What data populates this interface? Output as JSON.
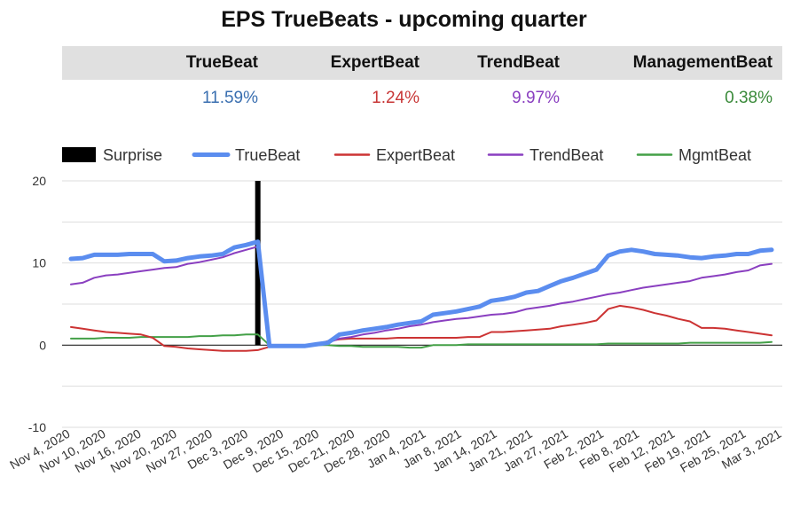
{
  "title": "EPS TrueBeats - upcoming quarter",
  "summary": {
    "headers": [
      "TrueBeat",
      "ExpertBeat",
      "TrendBeat",
      "ManagementBeat"
    ],
    "values": [
      "11.59%",
      "1.24%",
      "9.97%",
      "0.38%"
    ],
    "colors": [
      "#3a6fb0",
      "#c83737",
      "#8a3fc0",
      "#3a8a3a"
    ]
  },
  "chart_data": {
    "type": "line",
    "title": "",
    "xlabel": "",
    "ylabel": "",
    "ylim": [
      -10,
      20
    ],
    "y_ticks": [
      -10,
      0,
      10,
      20
    ],
    "grid": true,
    "legend_position": "top",
    "x_tick_labels": [
      "Nov 4, 2020",
      "Nov 10, 2020",
      "Nov 16, 2020",
      "Nov 20, 2020",
      "Nov 27, 2020",
      "Dec 3, 2020",
      "Dec 9, 2020",
      "Dec 15, 2020",
      "Dec 21, 2020",
      "Dec 28, 2020",
      "Jan 4, 2021",
      "Jan 8, 2021",
      "Jan 14, 2021",
      "Jan 21, 2021",
      "Jan 27, 2021",
      "Feb 2, 2021",
      "Feb 8, 2021",
      "Feb 12, 2021",
      "Feb 19, 2021",
      "Feb 25, 2021",
      "Mar 3, 2021"
    ],
    "x": [
      "2020-11-04",
      "2020-11-06",
      "2020-11-08",
      "2020-11-10",
      "2020-11-12",
      "2020-11-14",
      "2020-11-16",
      "2020-11-18",
      "2020-11-20",
      "2020-11-22",
      "2020-11-24",
      "2020-11-26",
      "2020-11-28",
      "2020-11-30",
      "2020-12-02",
      "2020-12-04",
      "2020-12-06",
      "2020-12-08",
      "2020-12-10",
      "2020-12-12",
      "2020-12-14",
      "2020-12-16",
      "2020-12-18",
      "2020-12-20",
      "2020-12-22",
      "2020-12-24",
      "2020-12-26",
      "2020-12-28",
      "2020-12-30",
      "2021-01-01",
      "2021-01-03",
      "2021-01-05",
      "2021-01-07",
      "2021-01-09",
      "2021-01-11",
      "2021-01-13",
      "2021-01-15",
      "2021-01-17",
      "2021-01-19",
      "2021-01-21",
      "2021-01-23",
      "2021-01-25",
      "2021-01-27",
      "2021-01-29",
      "2021-01-31",
      "2021-02-02",
      "2021-02-04",
      "2021-02-06",
      "2021-02-08",
      "2021-02-10",
      "2021-02-12",
      "2021-02-14",
      "2021-02-16",
      "2021-02-18",
      "2021-02-20",
      "2021-02-22",
      "2021-02-24",
      "2021-02-26",
      "2021-02-28",
      "2021-03-02",
      "2021-03-04"
    ],
    "surprise": {
      "name": "Surprise",
      "x": "2020-12-06",
      "value": 20,
      "color": "#000000"
    },
    "series": [
      {
        "name": "TrueBeat",
        "color": "#5b8def",
        "values": [
          10.5,
          10.6,
          11.0,
          11.0,
          11.0,
          11.1,
          11.1,
          11.1,
          10.2,
          10.3,
          10.6,
          10.8,
          10.9,
          11.1,
          11.9,
          12.2,
          12.6,
          -0.1,
          -0.1,
          -0.1,
          -0.1,
          0.1,
          0.3,
          1.3,
          1.5,
          1.8,
          2.0,
          2.2,
          2.5,
          2.7,
          2.9,
          3.7,
          3.9,
          4.1,
          4.4,
          4.7,
          5.4,
          5.6,
          5.9,
          6.4,
          6.6,
          7.2,
          7.8,
          8.2,
          8.7,
          9.2,
          10.9,
          11.4,
          11.6,
          11.4,
          11.1,
          11.0,
          10.9,
          10.7,
          10.6,
          10.8,
          10.9,
          11.1,
          11.1,
          11.5,
          11.6
        ]
      },
      {
        "name": "ExpertBeat",
        "color": "#cc3333",
        "values": [
          2.2,
          2.0,
          1.8,
          1.6,
          1.5,
          1.4,
          1.3,
          0.9,
          -0.1,
          -0.2,
          -0.4,
          -0.5,
          -0.6,
          -0.7,
          -0.7,
          -0.7,
          -0.6,
          -0.2,
          -0.1,
          -0.1,
          -0.1,
          0.1,
          0.5,
          0.7,
          0.8,
          0.8,
          0.8,
          0.8,
          0.9,
          0.9,
          0.9,
          0.9,
          0.9,
          0.9,
          1.0,
          1.0,
          1.6,
          1.6,
          1.7,
          1.8,
          1.9,
          2.0,
          2.3,
          2.5,
          2.7,
          3.0,
          4.4,
          4.8,
          4.6,
          4.3,
          3.9,
          3.6,
          3.2,
          2.9,
          2.1,
          2.1,
          2.0,
          1.8,
          1.6,
          1.4,
          1.2
        ]
      },
      {
        "name": "TrendBeat",
        "color": "#8a3fc0",
        "values": [
          7.4,
          7.6,
          8.2,
          8.5,
          8.6,
          8.8,
          9.0,
          9.2,
          9.4,
          9.5,
          9.9,
          10.1,
          10.4,
          10.7,
          11.2,
          11.6,
          12.0,
          -0.1,
          -0.1,
          -0.1,
          -0.1,
          0.1,
          0.3,
          0.8,
          1.0,
          1.3,
          1.5,
          1.8,
          2.0,
          2.3,
          2.5,
          2.8,
          3.0,
          3.2,
          3.3,
          3.5,
          3.7,
          3.8,
          4.0,
          4.4,
          4.6,
          4.8,
          5.1,
          5.3,
          5.6,
          5.9,
          6.2,
          6.4,
          6.7,
          7.0,
          7.2,
          7.4,
          7.6,
          7.8,
          8.2,
          8.4,
          8.6,
          8.9,
          9.1,
          9.7,
          9.9
        ]
      },
      {
        "name": "MgmtBeat",
        "color": "#43a047",
        "values": [
          0.8,
          0.8,
          0.8,
          0.9,
          0.9,
          0.9,
          1.0,
          1.0,
          1.0,
          1.0,
          1.0,
          1.1,
          1.1,
          1.2,
          1.2,
          1.3,
          1.3,
          0.0,
          0.0,
          0.0,
          0.0,
          0.0,
          0.0,
          -0.1,
          -0.1,
          -0.2,
          -0.2,
          -0.2,
          -0.2,
          -0.3,
          -0.3,
          0.0,
          0.0,
          0.0,
          0.1,
          0.1,
          0.1,
          0.1,
          0.1,
          0.1,
          0.1,
          0.1,
          0.1,
          0.1,
          0.1,
          0.1,
          0.2,
          0.2,
          0.2,
          0.2,
          0.2,
          0.2,
          0.2,
          0.3,
          0.3,
          0.3,
          0.3,
          0.3,
          0.3,
          0.3,
          0.38
        ]
      }
    ]
  }
}
